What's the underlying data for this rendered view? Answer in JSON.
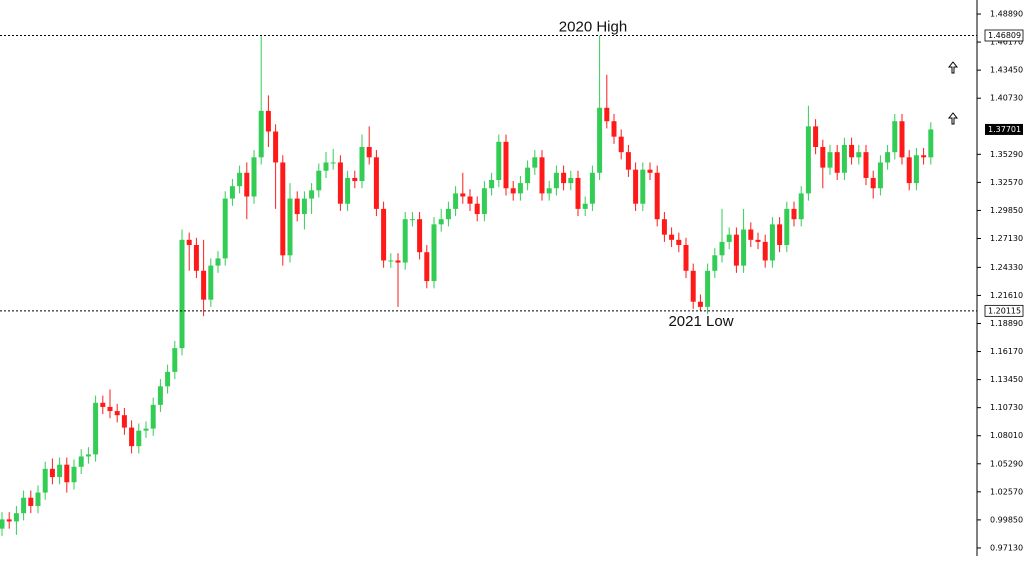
{
  "chart_data": {
    "type": "candlestick",
    "up_color": "#33cc55",
    "down_color": "#ff1a1a",
    "ylim": [
      0.9635,
      1.5025
    ],
    "yticks": [
      {
        "value": 1.4889,
        "label": "1.48890"
      },
      {
        "value": 1.4617,
        "label": "1.46170"
      },
      {
        "value": 1.4345,
        "label": "1.43450"
      },
      {
        "value": 1.4073,
        "label": "1.40730"
      },
      {
        "value": 1.3529,
        "label": "1.35290"
      },
      {
        "value": 1.3257,
        "label": "1.32570"
      },
      {
        "value": 1.2985,
        "label": "1.29850"
      },
      {
        "value": 1.2713,
        "label": "1.27130"
      },
      {
        "value": 1.2433,
        "label": "1.24330"
      },
      {
        "value": 1.2161,
        "label": "1.21610"
      },
      {
        "value": 1.1889,
        "label": "1.18890"
      },
      {
        "value": 1.1617,
        "label": "1.16170"
      },
      {
        "value": 1.1345,
        "label": "1.13450"
      },
      {
        "value": 1.1073,
        "label": "1.10730"
      },
      {
        "value": 1.0801,
        "label": "1.08010"
      },
      {
        "value": 1.0529,
        "label": "1.05290"
      },
      {
        "value": 1.0257,
        "label": "1.02570"
      },
      {
        "value": 0.9985,
        "label": "0.99850"
      },
      {
        "value": 0.9713,
        "label": "0.97130"
      }
    ],
    "levels": [
      {
        "value": 1.46809,
        "annotation": "2020 High"
      },
      {
        "value": 1.20115,
        "annotation": "2021 Low"
      }
    ],
    "last_price": 1.37701,
    "open": [
      0.99,
      0.999,
      0.997,
      1.005,
      1.02,
      1.012,
      1.025,
      1.048,
      1.04,
      1.052,
      1.035,
      1.05,
      1.06,
      1.062,
      1.112,
      1.108,
      1.104,
      1.1,
      1.088,
      1.07,
      1.085,
      1.087,
      1.11,
      1.128,
      1.142,
      1.165,
      1.27,
      1.265,
      1.24,
      1.212,
      1.245,
      1.252,
      1.31,
      1.322,
      1.335,
      1.312,
      1.35,
      1.395,
      1.375,
      1.345,
      1.255,
      1.31,
      1.295,
      1.31,
      1.318,
      1.337,
      1.345,
      1.345,
      1.305,
      1.33,
      1.327,
      1.36,
      1.35,
      1.3,
      1.25,
      1.25,
      1.248,
      1.29,
      1.29,
      1.258,
      1.23,
      1.285,
      1.29,
      1.3,
      1.315,
      1.312,
      1.305,
      1.295,
      1.32,
      1.328,
      1.365,
      1.32,
      1.315,
      1.325,
      1.34,
      1.35,
      1.315,
      1.32,
      1.335,
      1.325,
      1.33,
      1.3,
      1.305,
      1.335,
      1.398,
      1.385,
      1.37,
      1.355,
      1.338,
      1.305,
      1.338,
      1.335,
      1.29,
      1.275,
      1.27,
      1.265,
      1.24,
      1.21,
      1.205,
      1.24,
      1.255,
      1.268,
      1.275,
      1.245,
      1.28,
      1.27,
      1.268,
      1.25,
      1.285,
      1.265,
      1.3,
      1.29,
      1.315,
      1.38,
      1.36,
      1.34,
      1.355,
      1.335,
      1.362,
      1.35,
      1.355,
      1.33,
      1.32,
      1.345,
      1.355,
      1.385,
      1.35,
      1.325,
      1.352,
      1.35
    ],
    "high": [
      1.006,
      1.006,
      1.012,
      1.027,
      1.027,
      1.032,
      1.055,
      1.058,
      1.059,
      1.059,
      1.057,
      1.067,
      1.069,
      1.119,
      1.119,
      1.125,
      1.111,
      1.107,
      1.095,
      1.092,
      1.094,
      1.117,
      1.135,
      1.149,
      1.172,
      1.28,
      1.277,
      1.272,
      1.27,
      1.252,
      1.259,
      1.317,
      1.329,
      1.342,
      1.345,
      1.357,
      1.468,
      1.41,
      1.382,
      1.352,
      1.325,
      1.317,
      1.317,
      1.325,
      1.344,
      1.355,
      1.358,
      1.352,
      1.337,
      1.337,
      1.372,
      1.38,
      1.357,
      1.307,
      1.257,
      1.257,
      1.297,
      1.297,
      1.297,
      1.265,
      1.292,
      1.3,
      1.307,
      1.322,
      1.335,
      1.319,
      1.312,
      1.327,
      1.335,
      1.372,
      1.372,
      1.327,
      1.332,
      1.347,
      1.357,
      1.357,
      1.327,
      1.342,
      1.342,
      1.337,
      1.337,
      1.312,
      1.342,
      1.468,
      1.43,
      1.392,
      1.377,
      1.362,
      1.345,
      1.345,
      1.345,
      1.342,
      1.297,
      1.282,
      1.277,
      1.272,
      1.247,
      1.217,
      1.247,
      1.262,
      1.3,
      1.282,
      1.282,
      1.3,
      1.287,
      1.277,
      1.275,
      1.292,
      1.292,
      1.307,
      1.307,
      1.322,
      1.4,
      1.387,
      1.367,
      1.362,
      1.362,
      1.369,
      1.369,
      1.362,
      1.362,
      1.337,
      1.352,
      1.362,
      1.392,
      1.392,
      1.357,
      1.359,
      1.359,
      1.384
    ],
    "low": [
      0.983,
      0.99,
      0.984,
      0.998,
      1.005,
      1.005,
      1.018,
      1.033,
      1.033,
      1.025,
      1.028,
      1.043,
      1.053,
      1.055,
      1.101,
      1.097,
      1.093,
      1.081,
      1.063,
      1.063,
      1.078,
      1.08,
      1.103,
      1.121,
      1.135,
      1.158,
      1.24,
      1.233,
      1.196,
      1.205,
      1.238,
      1.245,
      1.303,
      1.315,
      1.29,
      1.305,
      1.343,
      1.36,
      1.3,
      1.245,
      1.248,
      1.288,
      1.28,
      1.295,
      1.311,
      1.33,
      1.338,
      1.298,
      1.298,
      1.32,
      1.32,
      1.343,
      1.293,
      1.243,
      1.243,
      1.205,
      1.241,
      1.283,
      1.251,
      1.223,
      1.223,
      1.278,
      1.283,
      1.293,
      1.305,
      1.298,
      1.288,
      1.288,
      1.313,
      1.321,
      1.313,
      1.308,
      1.308,
      1.318,
      1.333,
      1.308,
      1.308,
      1.313,
      1.318,
      1.318,
      1.293,
      1.293,
      1.298,
      1.328,
      1.378,
      1.363,
      1.348,
      1.331,
      1.298,
      1.298,
      1.328,
      1.283,
      1.268,
      1.263,
      1.258,
      1.233,
      1.203,
      1.201,
      1.198,
      1.233,
      1.248,
      1.261,
      1.238,
      1.238,
      1.263,
      1.261,
      1.243,
      1.243,
      1.258,
      1.258,
      1.283,
      1.283,
      1.308,
      1.353,
      1.32,
      1.333,
      1.328,
      1.328,
      1.343,
      1.343,
      1.323,
      1.31,
      1.313,
      1.338,
      1.348,
      1.343,
      1.318,
      1.318,
      1.343,
      1.343
    ],
    "close": [
      0.999,
      0.997,
      1.005,
      1.02,
      1.012,
      1.025,
      1.048,
      1.04,
      1.052,
      1.035,
      1.05,
      1.06,
      1.062,
      1.112,
      1.108,
      1.104,
      1.1,
      1.088,
      1.07,
      1.085,
      1.087,
      1.11,
      1.128,
      1.142,
      1.165,
      1.27,
      1.265,
      1.24,
      1.212,
      1.245,
      1.252,
      1.31,
      1.322,
      1.335,
      1.312,
      1.35,
      1.395,
      1.375,
      1.345,
      1.255,
      1.31,
      1.295,
      1.31,
      1.318,
      1.337,
      1.345,
      1.345,
      1.305,
      1.33,
      1.327,
      1.36,
      1.35,
      1.3,
      1.25,
      1.25,
      1.248,
      1.29,
      1.29,
      1.258,
      1.23,
      1.285,
      1.29,
      1.3,
      1.315,
      1.312,
      1.305,
      1.295,
      1.32,
      1.328,
      1.365,
      1.32,
      1.315,
      1.325,
      1.34,
      1.35,
      1.315,
      1.32,
      1.335,
      1.325,
      1.33,
      1.3,
      1.305,
      1.335,
      1.398,
      1.385,
      1.37,
      1.355,
      1.338,
      1.305,
      1.338,
      1.335,
      1.29,
      1.275,
      1.27,
      1.265,
      1.24,
      1.21,
      1.205,
      1.24,
      1.255,
      1.268,
      1.275,
      1.245,
      1.28,
      1.27,
      1.268,
      1.25,
      1.285,
      1.265,
      1.3,
      1.29,
      1.315,
      1.38,
      1.36,
      1.34,
      1.355,
      1.335,
      1.362,
      1.35,
      1.355,
      1.33,
      1.32,
      1.345,
      1.355,
      1.385,
      1.35,
      1.325,
      1.352,
      1.35,
      1.377
    ]
  }
}
